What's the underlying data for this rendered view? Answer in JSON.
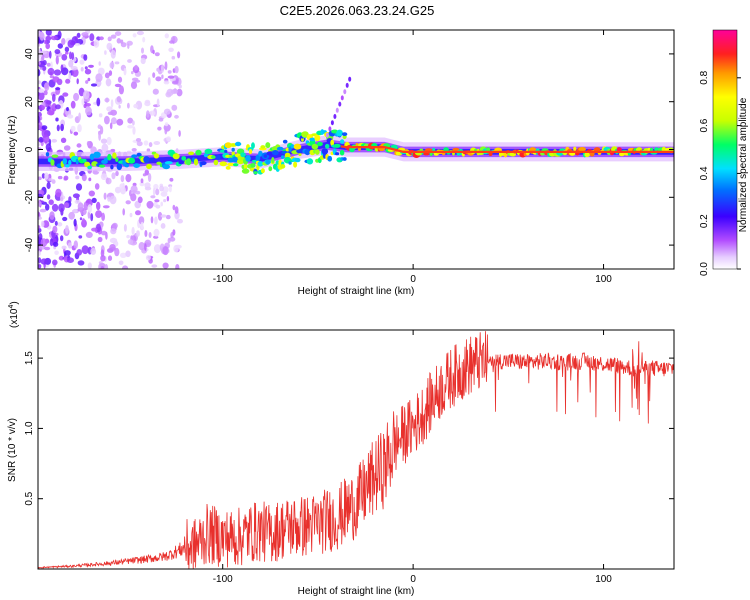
{
  "chart_data": [
    {
      "type": "heatmap",
      "title": "C2E5.2026.063.23.24.G25",
      "xlabel": "Height of straight line (km)",
      "ylabel": "Frequency (Hz)",
      "xlim": [
        -197,
        137
      ],
      "ylim": [
        -50,
        50
      ],
      "xticks": [
        -100,
        0,
        100
      ],
      "yticks": [
        -40,
        -20,
        0,
        20,
        40
      ],
      "colorbar": {
        "label": "Normalized spectral amplitude",
        "range": [
          0.0,
          1.0
        ],
        "ticks": [
          "0.0",
          "0.2",
          "0.4",
          "0.6",
          "0.8"
        ]
      },
      "ridge": {
        "description_points_x": [
          -190,
          -150,
          -120,
          -100,
          -80,
          -60,
          -45,
          -35,
          -25,
          -15,
          -5,
          0,
          10,
          40,
          80,
          120,
          137
        ],
        "description_points_freq": [
          -5,
          -5,
          -4,
          -3,
          -4,
          0,
          2,
          1,
          1,
          1,
          -1,
          -1,
          -1,
          -1,
          -1,
          -1,
          -1
        ]
      }
    },
    {
      "type": "line",
      "xlabel": "Height of straight line (km)",
      "ylabel": "SNR (10 * v/v)",
      "yscale_label": "(x10",
      "yscale_exp": "4",
      "yscale_close": ")",
      "xlim": [
        -197,
        137
      ],
      "ylim": [
        0,
        17000
      ],
      "xticks": [
        -100,
        0,
        100
      ],
      "yticks": [
        {
          "value": 5000,
          "label": "0.5"
        },
        {
          "value": 10000,
          "label": "1.0"
        },
        {
          "value": 15000,
          "label": "1.5"
        }
      ],
      "series": [
        {
          "name": "SNR",
          "color": "#e8302c",
          "x": [
            -197,
            -180,
            -160,
            -140,
            -130,
            -120,
            -115,
            -108,
            -100,
            -95,
            -90,
            -85,
            -80,
            -75,
            -70,
            -65,
            -60,
            -55,
            -50,
            -45,
            -40,
            -35,
            -30,
            -25,
            -20,
            -15,
            -10,
            -5,
            0,
            5,
            10,
            15,
            20,
            25,
            30,
            35,
            40,
            50,
            60,
            70,
            80,
            90,
            100,
            110,
            115,
            118,
            120,
            125,
            130,
            137
          ],
          "values": [
            100,
            200,
            400,
            700,
            900,
            1500,
            1600,
            2500,
            2200,
            2200,
            2300,
            2600,
            2700,
            2500,
            2800,
            3000,
            3000,
            3100,
            3200,
            3500,
            3600,
            4200,
            4600,
            5600,
            6600,
            7200,
            8800,
            9600,
            10100,
            11000,
            12000,
            12900,
            13600,
            14100,
            14500,
            14700,
            14800,
            14800,
            14700,
            14800,
            14700,
            14800,
            14600,
            14400,
            14300,
            14000,
            14200,
            14300,
            14200,
            14300
          ]
        }
      ]
    }
  ]
}
